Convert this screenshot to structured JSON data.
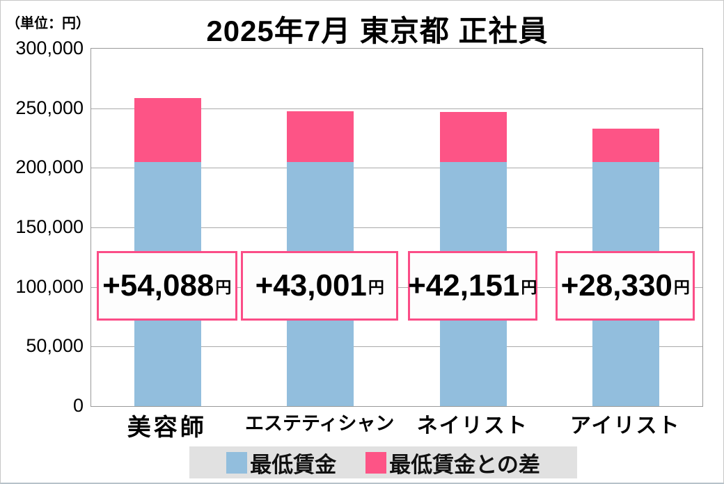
{
  "unit_note": "（単位：円）",
  "title": "2025年7月 東京都 正社員",
  "colors": {
    "min_wage_blue": "#92bedd",
    "diff_pink": "#fd5486",
    "annotation_border": "#fb4d87",
    "gridline": "#aaaaaa",
    "legend_background": "#e1e1e1"
  },
  "chart_data": {
    "type": "bar",
    "stacked": true,
    "title": "2025年7月 東京都 正社員",
    "unit": "円",
    "categories": [
      "美容師",
      "エステティシャン",
      "ネイリスト",
      "アイリスト"
    ],
    "series": [
      {
        "name": "最低賃金",
        "color": "#92bedd",
        "values": [
          204688,
          204688,
          204688,
          204688
        ]
      },
      {
        "name": "最低賃金との差",
        "color": "#fd5486",
        "values": [
          54088,
          43001,
          42151,
          28330
        ]
      }
    ],
    "totals": [
      258776,
      247689,
      246839,
      233018
    ],
    "annotations": [
      "+54,088",
      "+43,001",
      "+42,151",
      "+28,330"
    ],
    "annotation_unit": "円",
    "ylim": [
      0,
      300000
    ],
    "ytick_step": 50000,
    "ytick_labels": [
      "0",
      "50,000",
      "100,000",
      "150,000",
      "200,000",
      "250,000",
      "300,000"
    ],
    "grid": true,
    "legend_position": "bottom"
  },
  "legend": {
    "items": [
      {
        "label": "最低賃金",
        "color": "#92bedd"
      },
      {
        "label": "最低賃金との差",
        "color": "#fd5486"
      }
    ]
  }
}
